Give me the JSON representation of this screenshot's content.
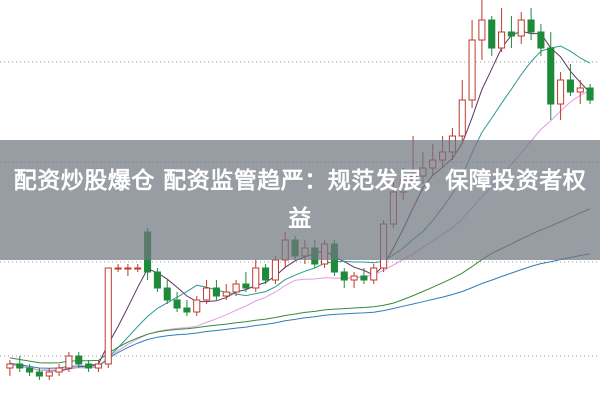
{
  "headline": "配资炒股爆仓 配资监管趋严：规范发展，保障投资者权益",
  "chart_data": {
    "type": "candlestick",
    "title": "",
    "grid": "dotted horizontal",
    "colors": {
      "up": "#c0392b",
      "down": "#1e8a3a",
      "ma": [
        "#5c3566",
        "#2a9d8f",
        "#e59be0",
        "#3a8a3a",
        "#2f7fb5"
      ]
    },
    "ma_periods": [
      5,
      10,
      20,
      40,
      60
    ],
    "ohlc": [
      [
        8,
        10,
        6,
        9
      ],
      [
        9,
        11,
        7,
        8
      ],
      [
        8,
        9,
        6,
        7
      ],
      [
        7,
        8,
        5,
        6
      ],
      [
        6,
        8,
        5,
        7
      ],
      [
        7,
        9,
        6,
        8
      ],
      [
        8,
        12,
        7,
        11
      ],
      [
        11,
        12,
        8,
        9
      ],
      [
        9,
        10,
        7,
        8
      ],
      [
        8,
        10,
        7,
        9
      ],
      [
        9,
        33,
        8,
        33
      ],
      [
        33,
        34,
        32,
        33
      ],
      [
        33,
        34,
        31,
        33
      ],
      [
        33,
        34,
        32,
        33
      ],
      [
        42,
        43,
        30,
        32
      ],
      [
        32,
        33,
        27,
        28
      ],
      [
        28,
        30,
        24,
        25
      ],
      [
        25,
        27,
        22,
        23
      ],
      [
        23,
        25,
        21,
        22
      ],
      [
        22,
        26,
        21,
        25
      ],
      [
        25,
        30,
        24,
        28
      ],
      [
        28,
        30,
        25,
        26
      ],
      [
        26,
        29,
        25,
        27
      ],
      [
        27,
        30,
        26,
        29
      ],
      [
        29,
        32,
        27,
        28
      ],
      [
        28,
        35,
        27,
        33
      ],
      [
        33,
        34,
        29,
        30
      ],
      [
        30,
        36,
        29,
        35
      ],
      [
        35,
        42,
        33,
        40
      ],
      [
        40,
        41,
        35,
        36
      ],
      [
        36,
        40,
        34,
        38
      ],
      [
        38,
        40,
        33,
        34
      ],
      [
        34,
        40,
        33,
        39
      ],
      [
        39,
        40,
        31,
        32
      ],
      [
        32,
        33,
        28,
        30
      ],
      [
        30,
        32,
        28,
        31
      ],
      [
        31,
        33,
        29,
        30
      ],
      [
        30,
        34,
        29,
        33
      ],
      [
        33,
        45,
        32,
        44
      ],
      [
        44,
        55,
        43,
        52
      ],
      [
        52,
        58,
        50,
        55
      ],
      [
        55,
        66,
        53,
        56
      ],
      [
        56,
        62,
        54,
        58
      ],
      [
        58,
        64,
        56,
        60
      ],
      [
        60,
        66,
        58,
        62
      ],
      [
        62,
        68,
        60,
        66
      ],
      [
        66,
        80,
        64,
        75
      ],
      [
        75,
        95,
        73,
        90
      ],
      [
        90,
        100,
        85,
        95
      ],
      [
        95,
        96,
        86,
        88
      ],
      [
        88,
        98,
        87,
        92
      ],
      [
        92,
        96,
        88,
        91
      ],
      [
        91,
        97,
        89,
        95
      ],
      [
        95,
        98,
        90,
        92
      ],
      [
        92,
        94,
        86,
        88
      ],
      [
        88,
        92,
        70,
        74
      ],
      [
        74,
        82,
        70,
        80
      ],
      [
        80,
        84,
        76,
        77
      ],
      [
        77,
        80,
        74,
        78
      ],
      [
        78,
        79,
        74,
        75
      ]
    ],
    "ylim": [
      0,
      100
    ]
  }
}
